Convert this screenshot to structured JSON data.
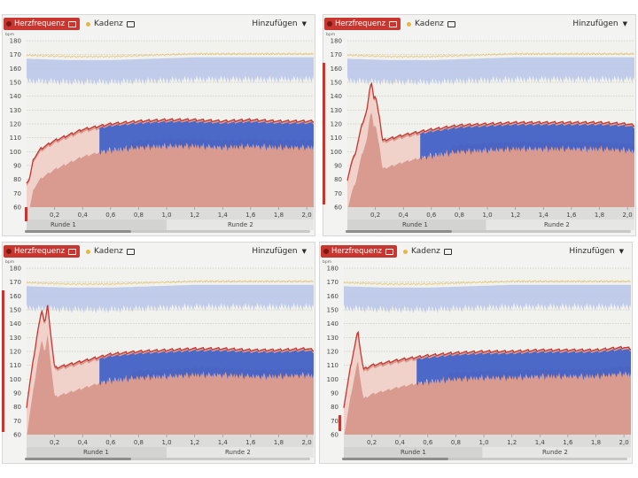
{
  "header": {
    "hr_label": "Herzfrequenz",
    "cadence_label": "Kadenz",
    "add_label": "Hinzufügen"
  },
  "units": {
    "y": "bpm"
  },
  "laps": [
    "Runde 1",
    "Runde 2"
  ],
  "colors": {
    "hr_line": "#c8362f",
    "hr_fill": "#d99b90",
    "pace_band": "#3e5fc8",
    "cadence_band": "#b7c6e8",
    "cadence_line": "#e7c36a"
  },
  "chart_data": [
    {
      "type": "area",
      "xlim": [
        0,
        2.05
      ],
      "ylim": [
        60,
        180
      ],
      "x_ticks": [
        "0,2",
        "0,4",
        "0,6",
        "0,8",
        "1,0",
        "1,2",
        "1,4",
        "1,6",
        "1,8",
        "2,0"
      ],
      "y_ticks": [
        "60",
        "70",
        "80",
        "90",
        "100",
        "110",
        "120",
        "130",
        "140",
        "150",
        "160",
        "170",
        "180"
      ],
      "lap_split": 1.0,
      "series": [
        {
          "name": "Herzfrequenz",
          "x": [
            0,
            0.02,
            0.05,
            0.1,
            0.2,
            0.3,
            0.4,
            0.5,
            0.6,
            0.8,
            1.0,
            1.2,
            1.4,
            1.6,
            1.8,
            2.0,
            2.05
          ],
          "values": [
            78,
            80,
            95,
            102,
            108,
            112,
            116,
            118,
            120,
            122,
            123,
            123,
            122,
            123,
            122,
            122,
            122
          ]
        },
        {
          "name": "Kadenz",
          "x": [
            0,
            0.3,
            0.6,
            0.9,
            1.2,
            1.5,
            1.8,
            2.05
          ],
          "values": [
            168,
            167,
            167,
            168,
            169,
            169,
            169,
            169
          ]
        }
      ]
    },
    {
      "type": "area",
      "xlim": [
        0,
        2.05
      ],
      "ylim": [
        60,
        180
      ],
      "x_ticks": [
        "0,2",
        "0,4",
        "0,6",
        "0,8",
        "1,0",
        "1,2",
        "1,4",
        "1,6",
        "1,8",
        "2,0"
      ],
      "y_ticks": [
        "60",
        "70",
        "80",
        "90",
        "100",
        "110",
        "120",
        "130",
        "140",
        "150",
        "160",
        "170",
        "180"
      ],
      "lap_split": 0.99,
      "series": [
        {
          "name": "Herzfrequenz",
          "x": [
            0,
            0.03,
            0.06,
            0.1,
            0.14,
            0.17,
            0.19,
            0.2,
            0.23,
            0.25,
            0.4,
            0.6,
            0.8,
            1.0,
            1.2,
            1.4,
            1.6,
            1.8,
            2.0,
            2.05
          ],
          "values": [
            80,
            92,
            100,
            118,
            130,
            152,
            138,
            140,
            125,
            108,
            112,
            116,
            119,
            120,
            121,
            121,
            121,
            121,
            120,
            119
          ]
        },
        {
          "name": "Kadenz",
          "x": [
            0,
            0.3,
            0.6,
            0.9,
            1.2,
            1.5,
            1.8,
            2.05
          ],
          "values": [
            168,
            167,
            167,
            168,
            169,
            169,
            169,
            169
          ]
        }
      ]
    },
    {
      "type": "area",
      "xlim": [
        0,
        2.05
      ],
      "ylim": [
        60,
        180
      ],
      "x_ticks": [
        "0,2",
        "0,4",
        "0,6",
        "0,8",
        "1,0",
        "1,2",
        "1,4",
        "1,6",
        "1,8",
        "2,0"
      ],
      "y_ticks": [
        "60",
        "70",
        "80",
        "90",
        "100",
        "110",
        "120",
        "130",
        "140",
        "150",
        "160",
        "170",
        "180"
      ],
      "lap_split": 1.0,
      "series": [
        {
          "name": "Herzfrequenz",
          "x": [
            0,
            0.02,
            0.05,
            0.08,
            0.11,
            0.13,
            0.15,
            0.17,
            0.2,
            0.4,
            0.6,
            0.8,
            1.0,
            1.2,
            1.4,
            1.6,
            1.8,
            2.0,
            2.05
          ],
          "values": [
            80,
            95,
            115,
            135,
            150,
            140,
            153,
            135,
            108,
            113,
            118,
            120,
            121,
            122,
            122,
            121,
            121,
            122,
            121
          ]
        },
        {
          "name": "Kadenz",
          "x": [
            0,
            0.3,
            0.6,
            0.9,
            1.2,
            1.5,
            1.8,
            2.05
          ],
          "values": [
            168,
            167,
            167,
            168,
            169,
            169,
            169,
            169
          ]
        }
      ]
    },
    {
      "type": "area",
      "xlim": [
        0,
        2.05
      ],
      "ylim": [
        60,
        180
      ],
      "x_ticks": [
        "0,2",
        "0,4",
        "0,6",
        "0,8",
        "1,0",
        "1,2",
        "1,4",
        "1,6",
        "1,8",
        "2,0"
      ],
      "y_ticks": [
        "60",
        "70",
        "80",
        "90",
        "100",
        "110",
        "120",
        "130",
        "140",
        "150",
        "160",
        "170",
        "180"
      ],
      "lap_split": 0.99,
      "series": [
        {
          "name": "Herzfrequenz",
          "x": [
            0,
            0.02,
            0.05,
            0.08,
            0.1,
            0.12,
            0.14,
            0.2,
            0.4,
            0.6,
            0.8,
            1.0,
            1.2,
            1.4,
            1.6,
            1.8,
            2.0,
            2.05
          ],
          "values": [
            80,
            92,
            110,
            125,
            135,
            120,
            107,
            110,
            114,
            117,
            119,
            120,
            120,
            121,
            121,
            121,
            123,
            122
          ]
        },
        {
          "name": "Kadenz",
          "x": [
            0,
            0.3,
            0.6,
            0.9,
            1.2,
            1.5,
            1.8,
            2.05
          ],
          "values": [
            168,
            167,
            167,
            168,
            169,
            169,
            169,
            169
          ]
        }
      ]
    }
  ]
}
